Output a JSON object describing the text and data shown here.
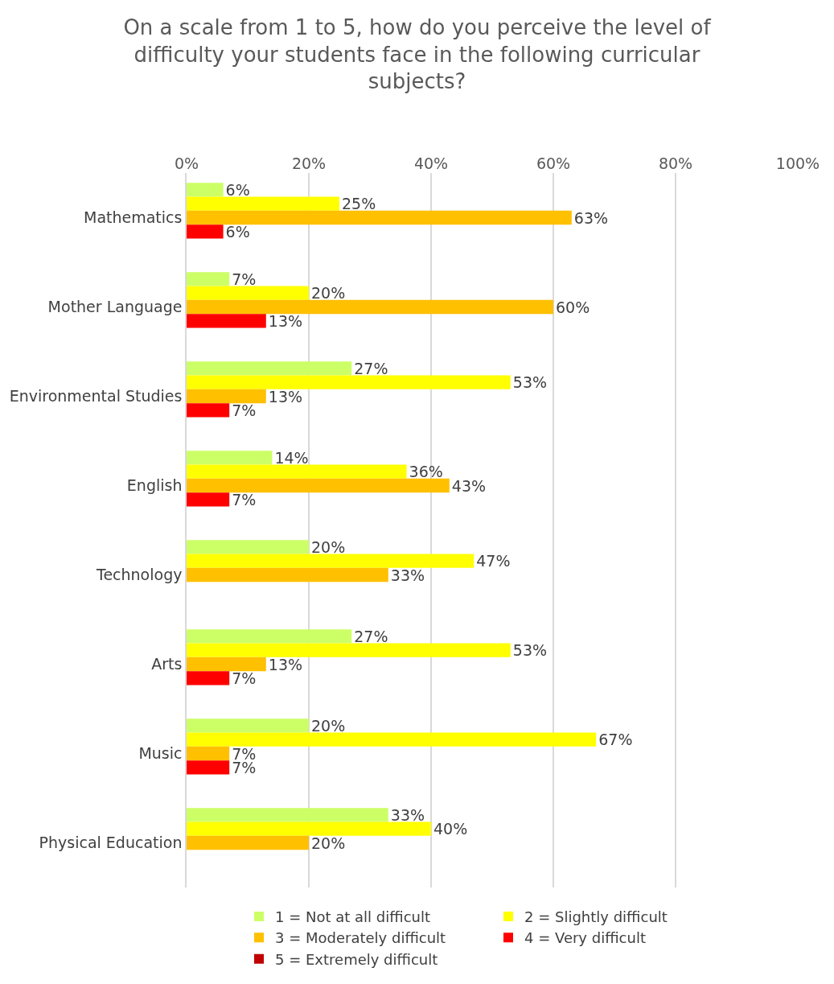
{
  "chart_data": {
    "type": "bar",
    "orientation": "horizontal",
    "title": "On a scale from 1 to 5, how do you perceive the level of difficulty your students face in the following curricular subjects?",
    "categories": [
      "Mathematics",
      "Mother Language",
      "Environmental Studies",
      "English",
      "Technology",
      "Arts",
      "Music",
      "Physical Education"
    ],
    "series": [
      {
        "name": "1 = Not at all difficult",
        "color": "#ccff66",
        "values": [
          6,
          7,
          27,
          14,
          20,
          27,
          20,
          33
        ],
        "value_labels": [
          "6%",
          "7%",
          "27%",
          "14%",
          "20%",
          "27%",
          "20%",
          "33%"
        ]
      },
      {
        "name": "2 = Slightly difficult",
        "color": "#ffff00",
        "values": [
          25,
          20,
          53,
          36,
          47,
          53,
          67,
          40
        ],
        "value_labels": [
          "25%",
          "20%",
          "53%",
          "36%",
          "47%",
          "53%",
          "67%",
          "40%"
        ]
      },
      {
        "name": "3 = Moderately difficult",
        "color": "#ffc000",
        "values": [
          63,
          60,
          13,
          43,
          33,
          13,
          7,
          20
        ],
        "value_labels": [
          "63%",
          "60%",
          "13%",
          "43%",
          "33%",
          "13%",
          "7%",
          "20%"
        ]
      },
      {
        "name": "4 = Very difficult",
        "color": "#ff0000",
        "values": [
          6,
          13,
          7,
          7,
          null,
          7,
          7,
          null
        ],
        "value_labels": [
          "6%",
          "13%",
          "7%",
          "7%",
          null,
          "7%",
          "7%",
          null
        ]
      },
      {
        "name": "5 = Extremely difficult",
        "color": "#c00000",
        "values": [
          null,
          null,
          null,
          null,
          null,
          null,
          null,
          null
        ]
      }
    ],
    "xlim": [
      0,
      100
    ],
    "xticks": [
      {
        "value": 0,
        "label": "0%"
      },
      {
        "value": 20,
        "label": "20%"
      },
      {
        "value": 40,
        "label": "40%"
      },
      {
        "value": 60,
        "label": "60%"
      },
      {
        "value": 80,
        "label": "80%"
      },
      {
        "value": 100,
        "label": "100%"
      }
    ],
    "grid": "x",
    "legend": "bottom"
  }
}
